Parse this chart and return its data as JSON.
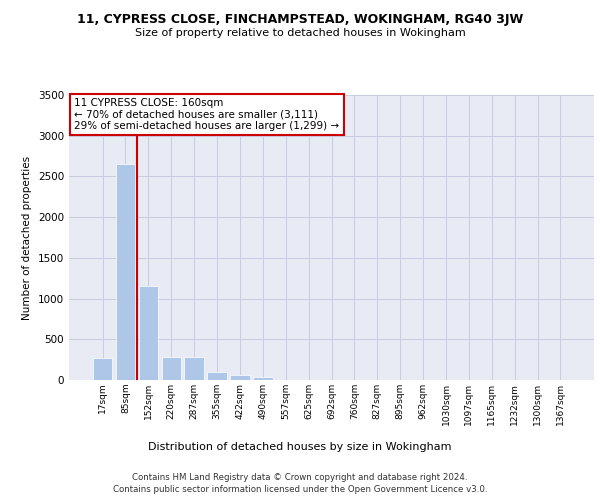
{
  "title_line1": "11, CYPRESS CLOSE, FINCHAMPSTEAD, WOKINGHAM, RG40 3JW",
  "title_line2": "Size of property relative to detached houses in Wokingham",
  "xlabel": "Distribution of detached houses by size in Wokingham",
  "ylabel": "Number of detached properties",
  "footer_line1": "Contains HM Land Registry data © Crown copyright and database right 2024.",
  "footer_line2": "Contains public sector information licensed under the Open Government Licence v3.0.",
  "annotation_title": "11 CYPRESS CLOSE: 160sqm",
  "annotation_line1": "← 70% of detached houses are smaller (3,111)",
  "annotation_line2": "29% of semi-detached houses are larger (1,299) →",
  "bar_labels": [
    "17sqm",
    "85sqm",
    "152sqm",
    "220sqm",
    "287sqm",
    "355sqm",
    "422sqm",
    "490sqm",
    "557sqm",
    "625sqm",
    "692sqm",
    "760sqm",
    "827sqm",
    "895sqm",
    "962sqm",
    "1030sqm",
    "1097sqm",
    "1165sqm",
    "1232sqm",
    "1300sqm",
    "1367sqm"
  ],
  "bar_values": [
    275,
    2650,
    1150,
    285,
    285,
    100,
    60,
    35,
    0,
    0,
    0,
    0,
    0,
    0,
    0,
    0,
    0,
    0,
    0,
    0,
    0
  ],
  "bar_color": "#aec6e8",
  "grid_color": "#c8cce0",
  "background_color": "#e8eaf4",
  "annotation_box_color": "#cc0000",
  "vline_x_index": 2,
  "ylim": [
    0,
    3500
  ],
  "yticks": [
    0,
    500,
    1000,
    1500,
    2000,
    2500,
    3000,
    3500
  ]
}
